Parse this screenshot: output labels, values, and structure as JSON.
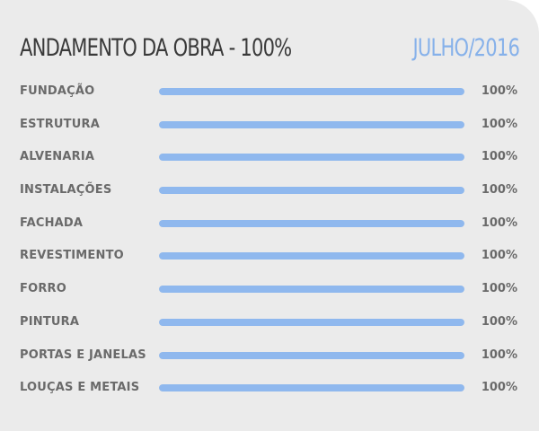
{
  "header": {
    "title": "ANDAMENTO DA OBRA - 100%",
    "date": "JULHO/2016"
  },
  "colors": {
    "accent": "#86b1ea",
    "bar_fill": "#8fb8ee",
    "background": "#ebebeb",
    "title_text": "#3a3a3a",
    "label_text": "#6a6a6a"
  },
  "stages": [
    {
      "label": "FUNDAÇÃO",
      "percent_text": "100%",
      "progress": 100
    },
    {
      "label": "ESTRUTURA",
      "percent_text": "100%",
      "progress": 100
    },
    {
      "label": "ALVENARIA",
      "percent_text": "100%",
      "progress": 100
    },
    {
      "label": "INSTALAÇÕES",
      "percent_text": "100%",
      "progress": 100
    },
    {
      "label": "FACHADA",
      "percent_text": "100%",
      "progress": 100
    },
    {
      "label": "REVESTIMENTO",
      "percent_text": "100%",
      "progress": 100
    },
    {
      "label": "FORRO",
      "percent_text": "100%",
      "progress": 100
    },
    {
      "label": "PINTURA",
      "percent_text": "100%",
      "progress": 100
    },
    {
      "label": "PORTAS E JANELAS",
      "percent_text": "100%",
      "progress": 100
    },
    {
      "label": "LOUÇAS E METAIS",
      "percent_text": "100%",
      "progress": 100
    }
  ]
}
